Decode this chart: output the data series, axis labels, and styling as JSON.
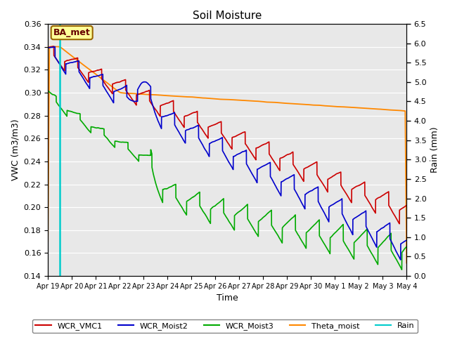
{
  "title": "Soil Moisture",
  "xlabel": "Time",
  "ylabel_left": "VWC (m3/m3)",
  "ylabel_right": "Rain (mm)",
  "ylim_left": [
    0.14,
    0.36
  ],
  "ylim_right": [
    0.0,
    6.5
  ],
  "yticks_left": [
    0.14,
    0.16,
    0.18,
    0.2,
    0.22,
    0.24,
    0.26,
    0.28,
    0.3,
    0.32,
    0.34,
    0.36
  ],
  "yticks_right": [
    0.0,
    0.5,
    1.0,
    1.5,
    2.0,
    2.5,
    3.0,
    3.5,
    4.0,
    4.5,
    5.0,
    5.5,
    6.0,
    6.5
  ],
  "colors": {
    "WCR_VMC1": "#cc0000",
    "WCR_Moist2": "#0000cc",
    "WCR_Moist3": "#00aa00",
    "Theta_moist": "#ff8800",
    "Rain": "#00cccc"
  },
  "annotation_text": "BA_met",
  "annotation_box_color": "#ffff99",
  "annotation_box_edge": "#996600",
  "background_color": "#e8e8e8",
  "num_points": 3600,
  "legend_labels": [
    "WCR_VMC1",
    "WCR_Moist2",
    "WCR_Moist3",
    "Theta_moist",
    "Rain"
  ]
}
